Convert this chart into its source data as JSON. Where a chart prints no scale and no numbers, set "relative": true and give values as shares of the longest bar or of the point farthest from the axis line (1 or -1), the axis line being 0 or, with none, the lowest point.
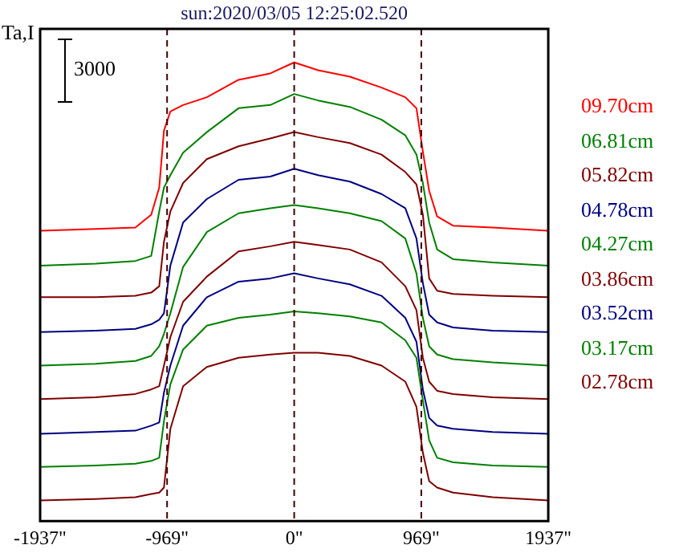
{
  "chart_data": {
    "type": "line",
    "title": "sun:2020/03/05 12:25:02.520",
    "ylabel": "Ta,I",
    "relative": true,
    "x": [
      -1937,
      -1513,
      -1211,
      -1090,
      -1029,
      -993,
      -944,
      -847,
      -666,
      -424,
      -182,
      0,
      182,
      424,
      666,
      847,
      932,
      981,
      1029,
      1090,
      1211,
      1513,
      1937
    ],
    "xlim": [
      -1937,
      1937
    ],
    "xticks": [
      {
        "value": -1937,
        "label": "-1937\""
      },
      {
        "value": -969,
        "label": "-969\""
      },
      {
        "value": 0,
        "label": "0\""
      },
      {
        "value": 969,
        "label": "969\""
      },
      {
        "value": 1937,
        "label": "1937\""
      }
    ],
    "series": [
      {
        "name": "09.70cm",
        "color": "#ff0000",
        "values": [
          0.633,
          0.637,
          0.64,
          0.668,
          0.727,
          0.851,
          0.893,
          0.907,
          0.924,
          0.962,
          0.976,
          1,
          0.983,
          0.969,
          0.945,
          0.924,
          0.9,
          0.806,
          0.72,
          0.664,
          0.644,
          0.64,
          0.633
        ]
      },
      {
        "name": "06.81cm",
        "color": "#008000",
        "values": [
          0.557,
          0.561,
          0.567,
          0.578,
          0.675,
          0.727,
          0.754,
          0.803,
          0.848,
          0.9,
          0.907,
          0.931,
          0.917,
          0.903,
          0.875,
          0.841,
          0.799,
          0.737,
          0.651,
          0.592,
          0.571,
          0.564,
          0.557
        ]
      },
      {
        "name": "05.82cm",
        "color": "#800000",
        "values": [
          0.488,
          0.488,
          0.491,
          0.498,
          0.512,
          0.609,
          0.675,
          0.737,
          0.789,
          0.817,
          0.834,
          0.848,
          0.837,
          0.824,
          0.799,
          0.761,
          0.734,
          0.668,
          0.529,
          0.502,
          0.495,
          0.491,
          0.488
        ]
      },
      {
        "name": "04.78cm",
        "color": "#000080",
        "values": [
          0.412,
          0.415,
          0.419,
          0.429,
          0.439,
          0.453,
          0.557,
          0.651,
          0.702,
          0.744,
          0.751,
          0.768,
          0.754,
          0.74,
          0.713,
          0.682,
          0.616,
          0.519,
          0.45,
          0.433,
          0.422,
          0.415,
          0.412
        ]
      },
      {
        "name": "04.27cm",
        "color": "#008000",
        "values": [
          0.339,
          0.343,
          0.349,
          0.36,
          0.381,
          0.408,
          0.453,
          0.554,
          0.63,
          0.671,
          0.682,
          0.689,
          0.682,
          0.671,
          0.654,
          0.616,
          0.54,
          0.443,
          0.381,
          0.363,
          0.353,
          0.346,
          0.339
        ]
      },
      {
        "name": "03.86cm",
        "color": "#800000",
        "values": [
          0.266,
          0.27,
          0.277,
          0.287,
          0.294,
          0.339,
          0.401,
          0.478,
          0.533,
          0.588,
          0.599,
          0.609,
          0.602,
          0.592,
          0.564,
          0.512,
          0.46,
          0.356,
          0.304,
          0.284,
          0.277,
          0.27,
          0.266
        ]
      },
      {
        "name": "03.52cm",
        "color": "#000080",
        "values": [
          0.19,
          0.194,
          0.197,
          0.208,
          0.215,
          0.28,
          0.339,
          0.426,
          0.488,
          0.522,
          0.529,
          0.54,
          0.529,
          0.516,
          0.491,
          0.443,
          0.391,
          0.287,
          0.225,
          0.208,
          0.201,
          0.194,
          0.19
        ]
      },
      {
        "name": "03.17cm",
        "color": "#008000",
        "values": [
          0.118,
          0.121,
          0.125,
          0.131,
          0.138,
          0.218,
          0.298,
          0.374,
          0.426,
          0.443,
          0.45,
          0.457,
          0.453,
          0.446,
          0.433,
          0.394,
          0.356,
          0.263,
          0.176,
          0.138,
          0.128,
          0.121,
          0.118
        ]
      },
      {
        "name": "02.78cm",
        "color": "#800000",
        "values": [
          0.045,
          0.048,
          0.052,
          0.059,
          0.062,
          0.073,
          0.201,
          0.294,
          0.336,
          0.356,
          0.363,
          0.367,
          0.367,
          0.36,
          0.339,
          0.304,
          0.249,
          0.149,
          0.087,
          0.073,
          0.062,
          0.052,
          0.045
        ]
      }
    ],
    "ref_lines": [
      {
        "axis": "x",
        "value": -969,
        "color": "#400000",
        "line_style": "dashed"
      },
      {
        "axis": "x",
        "value": 0,
        "color": "#400000",
        "line_style": "dashed"
      },
      {
        "axis": "x",
        "value": 969,
        "color": "#400000",
        "line_style": "dashed"
      }
    ],
    "annotations": [
      "3000"
    ],
    "grid": false,
    "legend": "right",
    "marker": "none",
    "line_style": "solid"
  }
}
